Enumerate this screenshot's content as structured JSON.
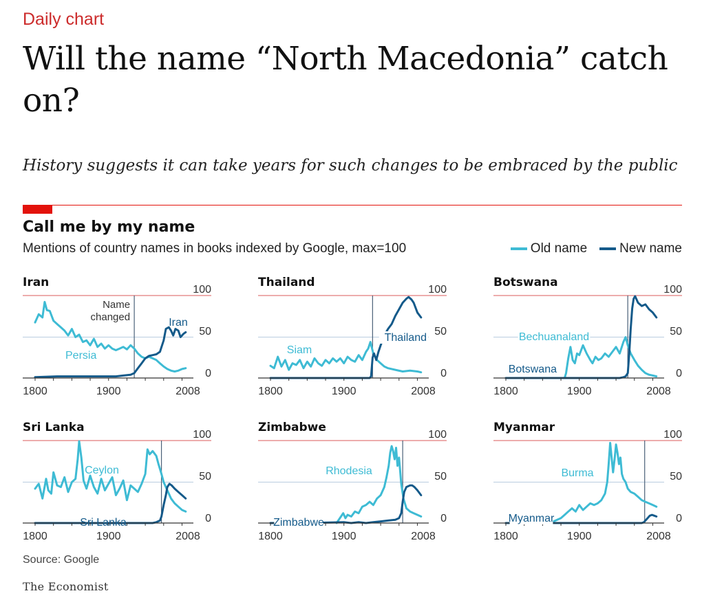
{
  "article": {
    "rubric": "Daily chart",
    "headline": "Will the name “North Macedonia” catch on?",
    "standfirst": "History suggests it can take years for such changes to be embraced by the public"
  },
  "chart_title": "Call me by my name",
  "chart_subtitle": "Mentions of country names in books indexed by Google, max=100",
  "legend": {
    "old_label": "Old name",
    "new_label": "New name"
  },
  "source": "Source: Google",
  "brand": "The Economist",
  "colors": {
    "old": "#3ebbd4",
    "new": "#145a8a",
    "accent_red": "#e3120b",
    "top_line": "#e27a7a",
    "grid": "#b9cde0",
    "baseline": "#333333",
    "change_marker": "#4a6078"
  },
  "chart_data": [
    {
      "type": "line",
      "title": "Iran",
      "xlim": [
        1800,
        2008
      ],
      "ylim": [
        0,
        100
      ],
      "xticks": [
        "1800",
        "1900",
        "2008"
      ],
      "yticks": [
        "0",
        "50",
        "100"
      ],
      "change_year": 1935,
      "annotation": "Name changed",
      "old_label": "Persia",
      "new_label": "Iran",
      "series": [
        {
          "name": "Persia",
          "role": "old",
          "x": [
            1800,
            1805,
            1810,
            1813,
            1816,
            1820,
            1825,
            1830,
            1835,
            1840,
            1845,
            1850,
            1855,
            1860,
            1865,
            1870,
            1875,
            1880,
            1885,
            1890,
            1895,
            1900,
            1905,
            1910,
            1915,
            1920,
            1925,
            1930,
            1935,
            1940,
            1945,
            1950,
            1955,
            1960,
            1965,
            1970,
            1975,
            1980,
            1985,
            1990,
            1995,
            2000,
            2005
          ],
          "y": [
            68,
            78,
            74,
            93,
            83,
            82,
            70,
            66,
            62,
            58,
            52,
            60,
            50,
            53,
            44,
            46,
            40,
            48,
            38,
            42,
            36,
            40,
            36,
            34,
            36,
            38,
            35,
            40,
            36,
            30,
            26,
            24,
            26,
            24,
            22,
            18,
            14,
            11,
            9,
            8,
            9,
            11,
            12
          ]
        },
        {
          "name": "Iran",
          "role": "new",
          "x": [
            1800,
            1830,
            1850,
            1870,
            1890,
            1910,
            1920,
            1930,
            1935,
            1940,
            1945,
            1950,
            1955,
            1960,
            1965,
            1970,
            1975,
            1978,
            1982,
            1985,
            1988,
            1991,
            1995,
            1998,
            2002,
            2005
          ],
          "y": [
            1,
            2,
            2,
            2,
            2,
            2,
            3,
            4,
            6,
            12,
            18,
            24,
            27,
            28,
            29,
            32,
            46,
            60,
            62,
            58,
            52,
            60,
            58,
            50,
            54,
            56
          ]
        }
      ]
    },
    {
      "type": "line",
      "title": "Thailand",
      "xlim": [
        1800,
        2008
      ],
      "ylim": [
        0,
        100
      ],
      "xticks": [
        "1800",
        "1900",
        "2008"
      ],
      "yticks": [
        "0",
        "50",
        "100"
      ],
      "change_year": 1939,
      "old_label": "Siam",
      "new_label": "Thailand",
      "series": [
        {
          "name": "Siam",
          "role": "old",
          "x": [
            1800,
            1805,
            1810,
            1815,
            1820,
            1825,
            1830,
            1835,
            1840,
            1845,
            1850,
            1855,
            1860,
            1865,
            1870,
            1875,
            1880,
            1885,
            1890,
            1895,
            1900,
            1905,
            1910,
            1915,
            1920,
            1925,
            1930,
            1933,
            1936,
            1940,
            1945,
            1950,
            1955,
            1960,
            1970,
            1980,
            1990,
            2000,
            2005
          ],
          "y": [
            15,
            12,
            26,
            14,
            22,
            10,
            18,
            16,
            22,
            12,
            20,
            14,
            24,
            18,
            15,
            22,
            18,
            24,
            20,
            24,
            18,
            26,
            22,
            20,
            28,
            22,
            32,
            36,
            44,
            30,
            22,
            18,
            14,
            12,
            10,
            8,
            9,
            8,
            7
          ]
        },
        {
          "name": "Thailand",
          "role": "new",
          "x": [
            1800,
            1850,
            1900,
            1920,
            1930,
            1935,
            1937,
            1939,
            1941,
            1944,
            1947,
            1950,
            1955,
            1960,
            1965,
            1970,
            1975,
            1980,
            1985,
            1988,
            1992,
            1995,
            2000,
            2005
          ],
          "y": [
            0,
            0,
            0,
            0,
            0,
            0,
            2,
            25,
            30,
            22,
            32,
            40,
            52,
            60,
            66,
            76,
            84,
            92,
            97,
            99,
            96,
            92,
            80,
            74
          ]
        }
      ]
    },
    {
      "type": "line",
      "title": "Botswana",
      "xlim": [
        1800,
        2008
      ],
      "ylim": [
        0,
        100
      ],
      "xticks": [
        "1800",
        "1900",
        "2008"
      ],
      "yticks": [
        "0",
        "50",
        "100"
      ],
      "change_year": 1966,
      "old_label": "Bechuanaland",
      "new_label": "Botswana",
      "series": [
        {
          "name": "Bechuanaland",
          "role": "old",
          "x": [
            1880,
            1882,
            1885,
            1888,
            1891,
            1894,
            1897,
            1900,
            1905,
            1910,
            1915,
            1918,
            1922,
            1926,
            1930,
            1935,
            1940,
            1945,
            1950,
            1955,
            1960,
            1963,
            1966,
            1970,
            1975,
            1980,
            1985,
            1990,
            1995,
            2000,
            2005
          ],
          "y": [
            0,
            6,
            24,
            38,
            22,
            18,
            30,
            28,
            40,
            30,
            22,
            18,
            26,
            22,
            24,
            30,
            26,
            32,
            38,
            30,
            44,
            50,
            40,
            30,
            22,
            15,
            10,
            6,
            4,
            3,
            2
          ]
        },
        {
          "name": "Botswana",
          "role": "new",
          "x": [
            1800,
            1850,
            1900,
            1930,
            1955,
            1960,
            1963,
            1966,
            1968,
            1970,
            1972,
            1974,
            1976,
            1980,
            1985,
            1990,
            1995,
            2000,
            2005
          ],
          "y": [
            0,
            0,
            0,
            0,
            0,
            1,
            2,
            6,
            30,
            60,
            85,
            97,
            100,
            92,
            88,
            90,
            84,
            80,
            74
          ]
        }
      ]
    },
    {
      "type": "line",
      "title": "Sri Lanka",
      "xlim": [
        1800,
        2008
      ],
      "ylim": [
        0,
        100
      ],
      "xticks": [
        "1800",
        "1900",
        "2008"
      ],
      "yticks": [
        "0",
        "50",
        "100"
      ],
      "change_year": 1972,
      "old_label": "Ceylon",
      "new_label": "Sri Lanka",
      "series": [
        {
          "name": "Ceylon",
          "role": "old",
          "x": [
            1800,
            1805,
            1810,
            1815,
            1818,
            1822,
            1825,
            1830,
            1835,
            1840,
            1845,
            1850,
            1855,
            1858,
            1860,
            1863,
            1866,
            1870,
            1875,
            1880,
            1885,
            1890,
            1895,
            1900,
            1905,
            1910,
            1915,
            1920,
            1925,
            1930,
            1935,
            1940,
            1945,
            1950,
            1953,
            1956,
            1960,
            1965,
            1968,
            1972,
            1975,
            1980,
            1985,
            1990,
            1995,
            2000,
            2005
          ],
          "y": [
            42,
            48,
            30,
            54,
            40,
            36,
            62,
            46,
            44,
            56,
            38,
            50,
            54,
            78,
            100,
            80,
            52,
            42,
            58,
            44,
            36,
            54,
            40,
            48,
            56,
            34,
            42,
            52,
            28,
            46,
            42,
            38,
            48,
            60,
            90,
            84,
            88,
            82,
            72,
            60,
            50,
            40,
            30,
            24,
            20,
            16,
            14
          ]
        },
        {
          "name": "Sri Lanka",
          "role": "new",
          "x": [
            1800,
            1850,
            1900,
            1950,
            1960,
            1965,
            1970,
            1972,
            1975,
            1978,
            1980,
            1983,
            1986,
            1990,
            1995,
            2000,
            2005
          ],
          "y": [
            0,
            0,
            0,
            0,
            0,
            1,
            3,
            8,
            22,
            34,
            44,
            48,
            46,
            42,
            38,
            34,
            30
          ]
        }
      ]
    },
    {
      "type": "line",
      "title": "Zimbabwe",
      "xlim": [
        1800,
        2008
      ],
      "ylim": [
        0,
        100
      ],
      "xticks": [
        "1800",
        "1900",
        "2008"
      ],
      "yticks": [
        "0",
        "50",
        "100"
      ],
      "change_year": 1980,
      "old_label": "Rhodesia",
      "new_label": "Zimbabwe",
      "series": [
        {
          "name": "Rhodesia",
          "role": "old",
          "x": [
            1890,
            1893,
            1896,
            1899,
            1902,
            1905,
            1910,
            1915,
            1920,
            1925,
            1930,
            1935,
            1940,
            1945,
            1950,
            1955,
            1958,
            1961,
            1963,
            1965,
            1967,
            1969,
            1971,
            1973,
            1975,
            1978,
            1981,
            1985,
            1990,
            1995,
            2000,
            2005
          ],
          "y": [
            0,
            4,
            8,
            12,
            6,
            10,
            8,
            14,
            12,
            20,
            22,
            26,
            22,
            30,
            34,
            44,
            56,
            70,
            86,
            94,
            88,
            78,
            92,
            70,
            80,
            48,
            30,
            18,
            14,
            12,
            10,
            8
          ]
        },
        {
          "name": "Zimbabwe",
          "role": "new",
          "x": [
            1800,
            1850,
            1900,
            1910,
            1920,
            1930,
            1940,
            1950,
            1960,
            1970,
            1975,
            1978,
            1980,
            1982,
            1985,
            1990,
            1993,
            1996,
            2000,
            2005
          ],
          "y": [
            0,
            0,
            1,
            0,
            1,
            0,
            1,
            2,
            3,
            4,
            6,
            12,
            26,
            38,
            44,
            46,
            46,
            44,
            40,
            34
          ]
        }
      ]
    },
    {
      "type": "line",
      "title": "Myanmar",
      "xlim": [
        1800,
        2008
      ],
      "ylim": [
        0,
        100
      ],
      "xticks": [
        "1800",
        "1900",
        "2008"
      ],
      "yticks": [
        "0",
        "50",
        "100"
      ],
      "change_year": 1989,
      "old_label": "Burma",
      "new_label": "Myanmar",
      "series": [
        {
          "name": "Burma",
          "role": "old",
          "x": [
            1860,
            1865,
            1870,
            1875,
            1880,
            1885,
            1890,
            1895,
            1900,
            1905,
            1910,
            1915,
            1920,
            1925,
            1930,
            1935,
            1938,
            1940,
            1942,
            1944,
            1946,
            1948,
            1950,
            1952,
            1954,
            1956,
            1958,
            1960,
            1963,
            1966,
            1970,
            1975,
            1980,
            1985,
            1990,
            1995,
            2000,
            2005
          ],
          "y": [
            0,
            2,
            4,
            6,
            10,
            14,
            18,
            14,
            22,
            16,
            20,
            24,
            22,
            24,
            28,
            36,
            50,
            72,
            98,
            80,
            62,
            78,
            96,
            86,
            72,
            80,
            60,
            54,
            50,
            42,
            38,
            36,
            32,
            28,
            26,
            24,
            22,
            20
          ]
        },
        {
          "name": "Myanmar",
          "role": "new",
          "x": [
            1800,
            1850,
            1900,
            1950,
            1980,
            1985,
            1988,
            1990,
            1993,
            1996,
            1999,
            2002,
            2005
          ],
          "y": [
            0,
            0,
            0,
            0,
            0,
            0,
            1,
            3,
            6,
            9,
            10,
            9,
            8
          ]
        }
      ]
    }
  ]
}
